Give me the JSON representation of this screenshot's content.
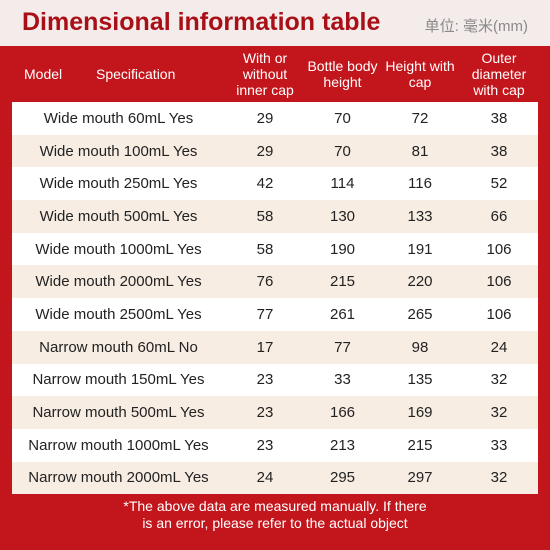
{
  "header": {
    "title": "Dimensional information table",
    "unit": "单位: 毫米(mm)"
  },
  "table": {
    "columns": [
      "Model",
      "Specification",
      "With or without inner cap",
      "Bottle body height",
      "Height with cap",
      "Outer diameter with cap"
    ],
    "rows": [
      [
        "Wide mouth 60mL Yes",
        29,
        70,
        72,
        38
      ],
      [
        "Wide mouth 100mL Yes",
        29,
        70,
        81,
        38
      ],
      [
        "Wide mouth 250mL Yes",
        42,
        114,
        116,
        52
      ],
      [
        "Wide mouth 500mL Yes",
        58,
        130,
        133,
        66
      ],
      [
        "Wide mouth 1000mL Yes",
        58,
        190,
        191,
        106
      ],
      [
        "Wide mouth 2000mL Yes",
        76,
        215,
        220,
        106
      ],
      [
        "Wide mouth 2500mL Yes",
        77,
        261,
        265,
        106
      ],
      [
        "Narrow mouth 60mL No",
        17,
        77,
        98,
        24
      ],
      [
        "Narrow mouth 150mL Yes",
        23,
        33,
        135,
        32
      ],
      [
        "Narrow mouth 500mL Yes",
        23,
        166,
        169,
        32
      ],
      [
        "Narrow mouth 1000mL Yes",
        23,
        213,
        215,
        33
      ],
      [
        "Narrow mouth 2000mL Yes",
        24,
        295,
        297,
        32
      ]
    ]
  },
  "footer": {
    "note": "*The above data are measured manually. If there is an error, please refer to the actual object"
  }
}
